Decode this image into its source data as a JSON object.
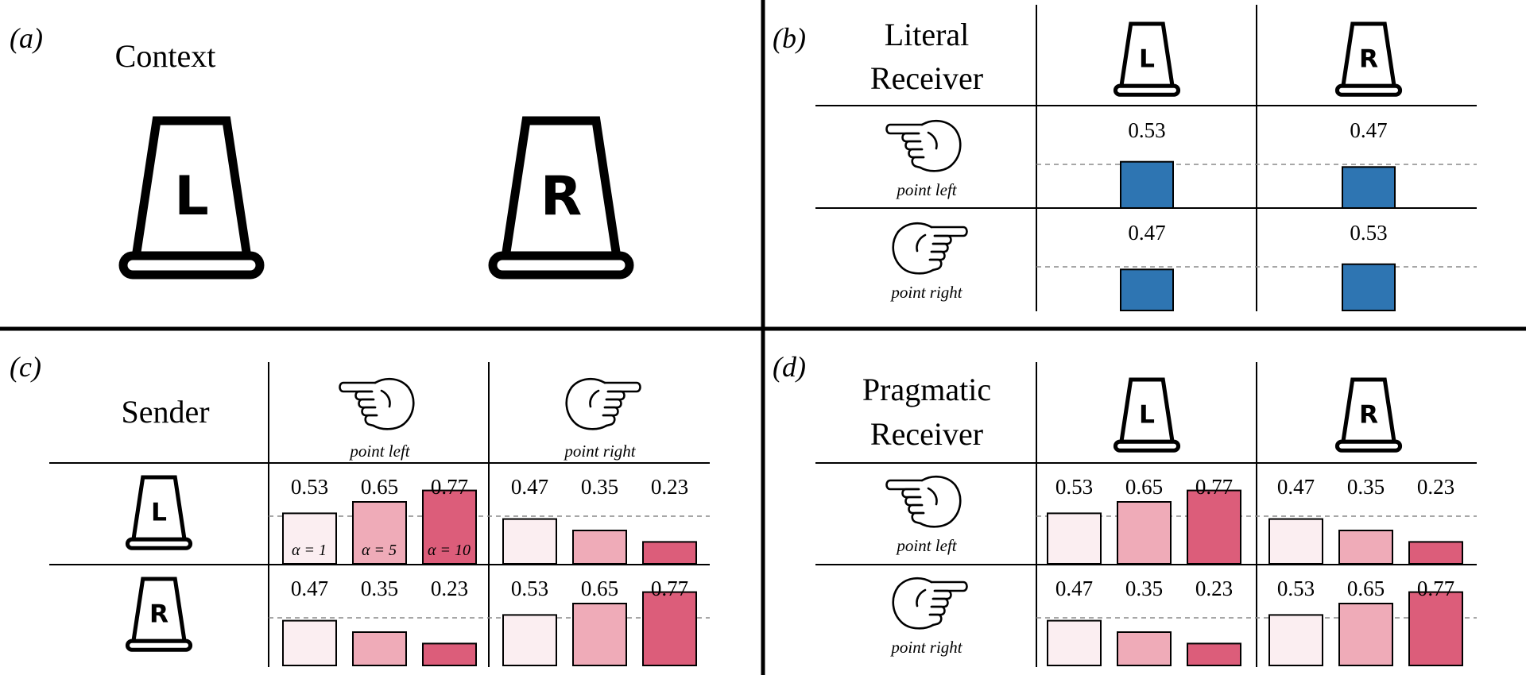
{
  "colors": {
    "line": "#000000",
    "blue": "#2e75b2",
    "pink_light": "#fbeef1",
    "pink_mid": "#efabb8",
    "pink_dark": "#dc5d7a",
    "dashed": "#8a8a8a"
  },
  "icons": {
    "cup": "cup-icon",
    "point_left": "pointing-left-hand-icon",
    "point_right": "pointing-right-hand-icon"
  },
  "panel_a": {
    "label": "(a)",
    "title": "Context",
    "cups": [
      "L",
      "R"
    ]
  },
  "panel_b": {
    "label": "(b)",
    "title": [
      "Literal",
      "Receiver"
    ],
    "cols": [
      "L",
      "R"
    ],
    "rows": [
      {
        "label": "point left",
        "hand": "left",
        "values": [
          0.53,
          0.47
        ]
      },
      {
        "label": "point right",
        "hand": "right",
        "values": [
          0.47,
          0.53
        ]
      }
    ]
  },
  "panel_c": {
    "label": "(c)",
    "title": "Sender",
    "cols": [
      {
        "label": "point left",
        "hand": "left"
      },
      {
        "label": "point right",
        "hand": "right"
      }
    ],
    "rows": [
      {
        "cup": "L",
        "values": [
          [
            0.53,
            0.65,
            0.77
          ],
          [
            0.47,
            0.35,
            0.23
          ]
        ]
      },
      {
        "cup": "R",
        "values": [
          [
            0.47,
            0.35,
            0.23
          ],
          [
            0.53,
            0.65,
            0.77
          ]
        ]
      }
    ],
    "alpha_labels": [
      "α = 1",
      "α = 5",
      "α = 10"
    ]
  },
  "panel_d": {
    "label": "(d)",
    "title": [
      "Pragmatic",
      "Receiver"
    ],
    "cols": [
      "L",
      "R"
    ],
    "rows": [
      {
        "label": "point left",
        "hand": "left",
        "values": [
          [
            0.53,
            0.65,
            0.77
          ],
          [
            0.47,
            0.35,
            0.23
          ]
        ]
      },
      {
        "label": "point right",
        "hand": "right",
        "values": [
          [
            0.47,
            0.35,
            0.23
          ],
          [
            0.53,
            0.65,
            0.77
          ]
        ]
      }
    ]
  }
}
